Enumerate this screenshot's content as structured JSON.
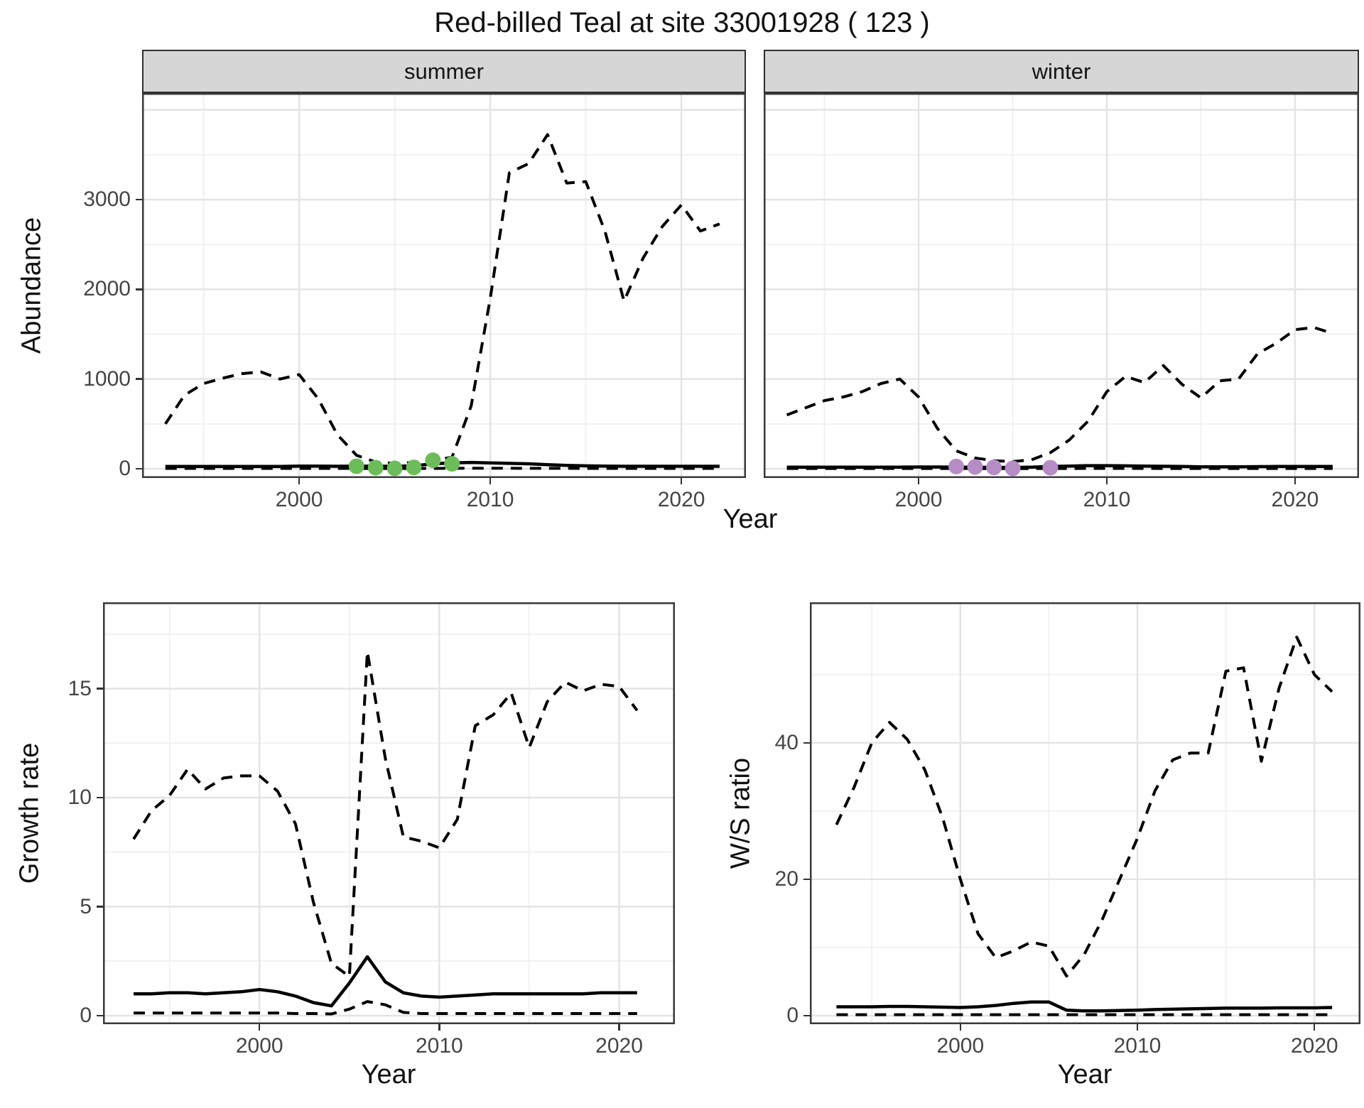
{
  "title": "Red-billed Teal at site 33001928 ( 123 )",
  "facet_row": {
    "ylabel": "Abundance",
    "xlabel": "Year",
    "facets": [
      "summer",
      "winter"
    ]
  },
  "bottom_left": {
    "ylabel": "Growth rate",
    "xlabel": "Year"
  },
  "bottom_right": {
    "ylabel": "W/S ratio",
    "xlabel": "Year"
  },
  "colors": {
    "summer_point": "#6cbd59",
    "winter_point": "#b68cc5",
    "line": "#000000",
    "strip_bg": "#d6d6d6",
    "grid_major": "#e4e4e4",
    "grid_minor": "#f1f1f1",
    "panel_border": "#3a3a3a",
    "tick_text": "#454545"
  },
  "chart_data": [
    {
      "id": "summer",
      "type": "line",
      "facet": "summer",
      "xlabel": "Year",
      "ylabel": "Abundance",
      "x": [
        1993,
        1994,
        1995,
        1996,
        1997,
        1998,
        1999,
        2000,
        2001,
        2002,
        2003,
        2004,
        2005,
        2006,
        2007,
        2008,
        2009,
        2010,
        2011,
        2012,
        2013,
        2014,
        2015,
        2016,
        2017,
        2018,
        2019,
        2020,
        2021,
        2022
      ],
      "series": [
        {
          "name": "upper_ci",
          "style": "dashed",
          "values": [
            500,
            820,
            950,
            1010,
            1060,
            1080,
            1000,
            1050,
            780,
            380,
            150,
            75,
            60,
            70,
            90,
            130,
            700,
            1900,
            3300,
            3400,
            3725,
            3185,
            3200,
            2650,
            1870,
            2350,
            2700,
            2940,
            2650,
            2730
          ]
        },
        {
          "name": "median",
          "style": "solid",
          "values": [
            25,
            25,
            25,
            25,
            25,
            25,
            25,
            30,
            30,
            28,
            30,
            28,
            28,
            32,
            55,
            65,
            70,
            65,
            60,
            55,
            45,
            38,
            32,
            30,
            28,
            28,
            28,
            28,
            28,
            28
          ]
        },
        {
          "name": "lower_ci",
          "style": "dashed",
          "values": [
            4,
            4,
            4,
            4,
            4,
            4,
            4,
            4,
            4,
            4,
            4,
            3,
            3,
            3,
            4,
            5,
            6,
            6,
            6,
            5,
            5,
            5,
            4,
            4,
            4,
            4,
            4,
            4,
            4,
            4
          ]
        }
      ],
      "points": {
        "name": "observed-counts",
        "color": "#6cbd59",
        "x": [
          2003,
          2004,
          2005,
          2006,
          2007,
          2008
        ],
        "y": [
          28,
          12,
          5,
          15,
          95,
          55
        ]
      },
      "xticks": [
        2000,
        2010,
        2020
      ],
      "yticks": [
        0,
        1000,
        2000,
        3000
      ],
      "ylim": [
        -103,
        4188
      ],
      "xlim": [
        1991.78,
        2023.38
      ],
      "grid": "on"
    },
    {
      "id": "winter",
      "type": "line",
      "facet": "winter",
      "xlabel": "Year",
      "ylabel": "Abundance",
      "x": [
        1993,
        1994,
        1995,
        1996,
        1997,
        1998,
        1999,
        2000,
        2001,
        2002,
        2003,
        2004,
        2005,
        2006,
        2007,
        2008,
        2009,
        2010,
        2011,
        2012,
        2013,
        2014,
        2015,
        2016,
        2017,
        2018,
        2019,
        2020,
        2021,
        2022
      ],
      "series": [
        {
          "name": "upper_ci",
          "style": "dashed",
          "values": [
            600,
            680,
            760,
            800,
            860,
            950,
            1000,
            800,
            450,
            200,
            120,
            90,
            80,
            100,
            180,
            320,
            530,
            860,
            1030,
            960,
            1150,
            940,
            790,
            980,
            1000,
            1280,
            1400,
            1550,
            1575,
            1510
          ]
        },
        {
          "name": "median",
          "style": "solid",
          "values": [
            18,
            18,
            18,
            18,
            18,
            18,
            18,
            20,
            20,
            18,
            18,
            15,
            15,
            18,
            25,
            30,
            35,
            35,
            32,
            30,
            28,
            25,
            22,
            22,
            22,
            24,
            25,
            26,
            26,
            26
          ]
        },
        {
          "name": "lower_ci",
          "style": "dashed",
          "values": [
            3,
            3,
            3,
            3,
            3,
            3,
            3,
            3,
            3,
            3,
            2,
            2,
            2,
            2,
            3,
            3,
            4,
            4,
            4,
            4,
            3,
            3,
            3,
            3,
            3,
            3,
            3,
            3,
            3,
            3
          ]
        }
      ],
      "points": {
        "name": "observed-counts",
        "color": "#b68cc5",
        "x": [
          2002,
          2003,
          2004,
          2005,
          2007
        ],
        "y": [
          25,
          20,
          15,
          5,
          12
        ]
      },
      "xticks": [
        2000,
        2010,
        2020
      ],
      "yticks": [
        0,
        1000,
        2000,
        3000
      ],
      "ylim": [
        -103,
        4188
      ],
      "xlim": [
        1991.77,
        2023.4
      ],
      "grid": "on"
    },
    {
      "id": "growth",
      "type": "line",
      "title": "",
      "xlabel": "Year",
      "ylabel": "Growth rate",
      "x": [
        1993,
        1994,
        1995,
        1996,
        1997,
        1998,
        1999,
        2000,
        2001,
        2002,
        2003,
        2004,
        2005,
        2006,
        2007,
        2008,
        2009,
        2010,
        2011,
        2012,
        2013,
        2014,
        2015,
        2016,
        2017,
        2018,
        2019,
        2020,
        2021
      ],
      "series": [
        {
          "name": "upper_ci",
          "style": "dashed",
          "values": [
            8.1,
            9.4,
            10.1,
            11.3,
            10.4,
            10.9,
            11.0,
            11.0,
            10.3,
            8.8,
            5.2,
            2.4,
            1.8,
            16.7,
            11.8,
            8.2,
            8.0,
            7.7,
            9.0,
            13.3,
            13.8,
            14.8,
            12.3,
            14.4,
            15.3,
            14.9,
            15.2,
            15.1,
            14.0
          ]
        },
        {
          "name": "median",
          "style": "solid",
          "values": [
            1.0,
            1.0,
            1.05,
            1.05,
            1.0,
            1.05,
            1.1,
            1.2,
            1.1,
            0.9,
            0.6,
            0.45,
            1.5,
            2.7,
            1.55,
            1.05,
            0.9,
            0.85,
            0.9,
            0.95,
            1.0,
            1.0,
            1.0,
            1.0,
            1.0,
            1.0,
            1.05,
            1.05,
            1.05
          ]
        },
        {
          "name": "lower_ci",
          "style": "dashed",
          "values": [
            0.12,
            0.12,
            0.12,
            0.12,
            0.12,
            0.12,
            0.12,
            0.12,
            0.12,
            0.1,
            0.1,
            0.08,
            0.3,
            0.65,
            0.5,
            0.15,
            0.1,
            0.1,
            0.1,
            0.1,
            0.1,
            0.1,
            0.1,
            0.1,
            0.1,
            0.1,
            0.1,
            0.1,
            0.1
          ]
        }
      ],
      "xticks": [
        2000,
        2010,
        2020
      ],
      "yticks": [
        0,
        5,
        10,
        15
      ],
      "ylim": [
        -0.39,
        18.96
      ],
      "xlim": [
        1991.3,
        2023.1
      ],
      "grid": "on"
    },
    {
      "id": "ws_ratio",
      "type": "line",
      "title": "",
      "xlabel": "Year",
      "ylabel": "W/S ratio",
      "x": [
        1993,
        1994,
        1995,
        1996,
        1997,
        1998,
        1999,
        2000,
        2001,
        2002,
        2003,
        2004,
        2005,
        2006,
        2007,
        2008,
        2009,
        2010,
        2011,
        2012,
        2013,
        2014,
        2015,
        2016,
        2017,
        2018,
        2019,
        2020,
        2021
      ],
      "series": [
        {
          "name": "upper_ci",
          "style": "dashed",
          "values": [
            28,
            33.5,
            40,
            43,
            40.5,
            36,
            29,
            20,
            12,
            8.5,
            9.5,
            10.8,
            10.2,
            5.8,
            9,
            14,
            20,
            26,
            33,
            37.5,
            38.5,
            38.5,
            50.5,
            51,
            37.3,
            48,
            55.5,
            50,
            47.5
          ]
        },
        {
          "name": "median",
          "style": "solid",
          "values": [
            1.3,
            1.3,
            1.3,
            1.35,
            1.35,
            1.3,
            1.25,
            1.2,
            1.3,
            1.5,
            1.8,
            2.0,
            2.0,
            0.8,
            0.7,
            0.7,
            0.75,
            0.8,
            0.9,
            0.95,
            1.0,
            1.05,
            1.1,
            1.1,
            1.1,
            1.15,
            1.15,
            1.15,
            1.2
          ]
        },
        {
          "name": "lower_ci",
          "style": "dashed",
          "values": [
            0.15,
            0.15,
            0.15,
            0.15,
            0.15,
            0.15,
            0.15,
            0.15,
            0.15,
            0.15,
            0.15,
            0.15,
            0.15,
            0.15,
            0.15,
            0.15,
            0.15,
            0.15,
            0.15,
            0.15,
            0.15,
            0.15,
            0.15,
            0.15,
            0.15,
            0.15,
            0.15,
            0.15,
            0.15
          ]
        }
      ],
      "xticks": [
        2000,
        2010,
        2020
      ],
      "yticks": [
        0,
        20,
        40
      ],
      "ylim": [
        -1.25,
        60.6
      ],
      "xlim": [
        1991.5,
        2022.6
      ],
      "grid": "on"
    }
  ]
}
